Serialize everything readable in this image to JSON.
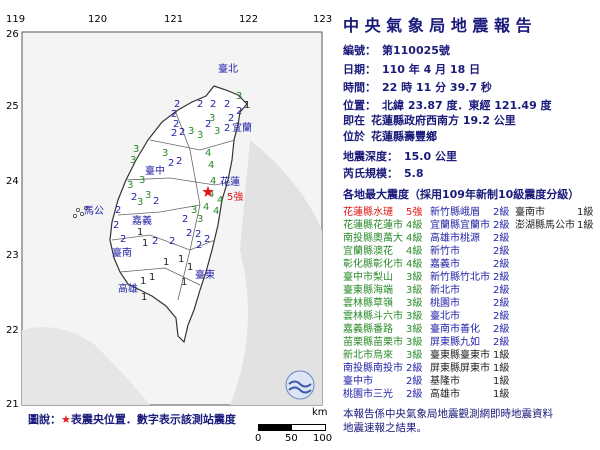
{
  "report": {
    "title": "中 央 氣 象 局 地 震 報 告",
    "number_label": "編號：",
    "number": "第110025號",
    "date_label": "日期：",
    "date": "110 年 4 月 18 日",
    "time_label": "時間：",
    "time": "22 時 11 分 39.7 秒",
    "location_label": "位置：",
    "location": "北緯 23.87 度．東經 121.49 度",
    "relative_label": "即在",
    "relative": "花蓮縣政府西南方 19.2 公里",
    "area_label": "位於",
    "area": "花蓮縣壽豐鄉",
    "depth_label": "地震深度：",
    "depth": "15.0 公里",
    "magnitude_label": "芮氏規模：",
    "magnitude": "5.8",
    "intensity_heading": "各地最大震度（採用109年新制10級震度分級）"
  },
  "level_colors": {
    "5強": "#e01818",
    "4級": "#2a8a2a",
    "3級": "#2a8a2a",
    "2級": "#2323a8",
    "1級": "#222222"
  },
  "intensity_columns": [
    [
      {
        "place": "花蓮縣水璉",
        "level": "5強"
      },
      {
        "place": "花蓮縣花蓮市",
        "level": "4級"
      },
      {
        "place": "南投縣奧萬大",
        "level": "4級"
      },
      {
        "place": "宜蘭縣澳花",
        "level": "4級"
      },
      {
        "place": "彰化縣彰化市",
        "level": "4級"
      },
      {
        "place": "臺中市梨山",
        "level": "3級"
      },
      {
        "place": "臺東縣海端",
        "level": "3級"
      },
      {
        "place": "雲林縣草嶺",
        "level": "3級"
      },
      {
        "place": "雲林縣斗六市",
        "level": "3級"
      },
      {
        "place": "嘉義縣番路",
        "level": "3級"
      },
      {
        "place": "苗栗縣苗栗市",
        "level": "3級"
      },
      {
        "place": "新北市烏來",
        "level": "3級"
      },
      {
        "place": "南投縣南投市",
        "level": "2級"
      },
      {
        "place": "臺中市",
        "level": "2級"
      },
      {
        "place": "桃園市三光",
        "level": "2級"
      }
    ],
    [
      {
        "place": "新竹縣峨眉",
        "level": "2級"
      },
      {
        "place": "宜蘭縣宜蘭市",
        "level": "2級"
      },
      {
        "place": "高雄市桃源",
        "level": "2級"
      },
      {
        "place": "新竹市",
        "level": "2級"
      },
      {
        "place": "嘉義市",
        "level": "2級"
      },
      {
        "place": "新竹縣竹北市",
        "level": "2級"
      },
      {
        "place": "新北市",
        "level": "2級"
      },
      {
        "place": "桃園市",
        "level": "2級"
      },
      {
        "place": "臺北市",
        "level": "2級"
      },
      {
        "place": "臺南市善化",
        "level": "2級"
      },
      {
        "place": "屏東縣九如",
        "level": "2級"
      },
      {
        "place": "臺東縣臺東市",
        "level": "1級"
      },
      {
        "place": "屏東縣屏東市",
        "level": "1級"
      },
      {
        "place": "基隆市",
        "level": "1級"
      },
      {
        "place": "高雄市",
        "level": "1級"
      }
    ],
    [
      {
        "place": "臺南市",
        "level": "1級"
      },
      {
        "place": "澎湖縣馬公市",
        "level": "1級"
      }
    ]
  ],
  "footer": {
    "line1": "本報告係中央氣象局地震觀測網即時地震資料",
    "line2": "地震速報之結果。"
  },
  "map": {
    "lon_labels": [
      "119",
      "120",
      "121",
      "122",
      "123"
    ],
    "lat_labels": [
      "26",
      "25",
      "24",
      "23",
      "22",
      "21"
    ],
    "legend_prefix": "圖說：",
    "legend_star": "★",
    "legend_text": "表震央位置．數字表示該測站震度",
    "scale_unit": "km",
    "scale_ticks": [
      "0",
      "50",
      "100"
    ],
    "cities": [
      "臺北",
      "宜蘭",
      "花蓮",
      "臺中",
      "嘉義",
      "臺南",
      "高雄",
      "臺東",
      "馬公"
    ],
    "station_labels": [
      "2",
      "2",
      "2",
      "2",
      "2",
      "1",
      "2",
      "3",
      "2",
      "2",
      "2",
      "2",
      "3",
      "3",
      "2",
      "2",
      "3",
      "3",
      "2",
      "2",
      "3",
      "3",
      "4",
      "4",
      "4",
      "4",
      "4",
      "4",
      "4",
      "3",
      "2",
      "3",
      "2",
      "3",
      "2",
      "3",
      "3",
      "2",
      "2",
      "2",
      "2",
      "2",
      "2",
      "1",
      "1",
      "1",
      "2",
      "1",
      "2",
      "2",
      "1",
      "1",
      "1",
      "1",
      "1",
      "3",
      "3",
      "5強"
    ],
    "colors": {
      "epicenter": "#e01818",
      "sea": "#f4f4f4",
      "land": "#ffffff",
      "border": "#333333"
    }
  }
}
